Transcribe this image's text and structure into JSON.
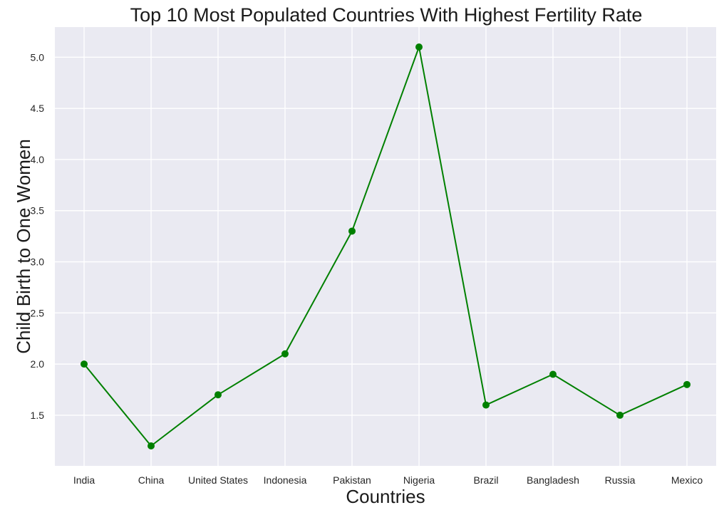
{
  "chart_data": {
    "type": "line",
    "title": "Top 10  Most Populated Countries With Highest Fertility Rate",
    "xlabel": "Countries",
    "ylabel": "Child Birth to One Women",
    "categories": [
      "India",
      "China",
      "United States",
      "Indonesia",
      "Pakistan",
      "Nigeria",
      "Brazil",
      "Bangladesh",
      "Russia",
      "Mexico"
    ],
    "series": [
      {
        "values": [
          2.0,
          1.2,
          1.7,
          2.1,
          3.3,
          5.1,
          1.6,
          1.9,
          1.5,
          1.8
        ]
      }
    ],
    "yticks": [
      1.5,
      2.0,
      2.5,
      3.0,
      3.5,
      4.0,
      4.5,
      5.0
    ],
    "ytick_labels": [
      "1.5",
      "2.0",
      "2.5",
      "3.0",
      "3.5",
      "4.0",
      "4.5",
      "5.0"
    ],
    "ylim": [
      1.005,
      5.295
    ],
    "grid": true,
    "colors": {
      "line": "#008000",
      "plot_background": "#eaeaf2",
      "grid": "#ffffff"
    }
  }
}
